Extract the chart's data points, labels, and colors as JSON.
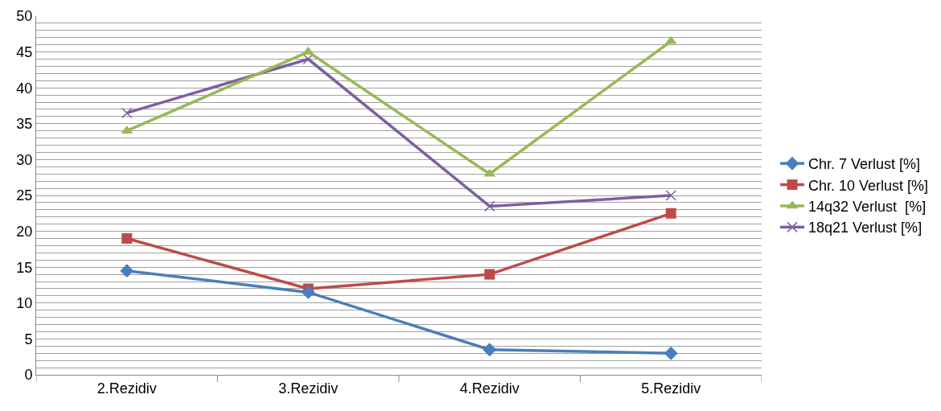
{
  "chart_data": {
    "type": "line",
    "categories": [
      "2.Rezidiv",
      "3.Rezidiv",
      "4.Rezidiv",
      "5.Rezidiv"
    ],
    "series": [
      {
        "name": "Chr. 7 Verlust [%]",
        "color": "#4a7ebb",
        "marker": "diamond",
        "values": [
          14.5,
          11.5,
          3.5,
          3
        ]
      },
      {
        "name": "Chr. 10 Verlust [%]",
        "color": "#be4b48",
        "marker": "square",
        "values": [
          19,
          12,
          14,
          22.5
        ]
      },
      {
        "name": "14q32 Verlust  [%]",
        "color": "#98b954",
        "marker": "triangle",
        "values": [
          34,
          45,
          28,
          46.5
        ]
      },
      {
        "name": "18q21 Verlust [%]",
        "color": "#7d5fa0",
        "marker": "cross",
        "values": [
          36.5,
          44,
          23.5,
          25
        ]
      }
    ],
    "ylim": [
      0,
      50
    ],
    "yticks": [
      0,
      {
        "value": 1,
        "label": null
      },
      {
        "value": 2,
        "label": null
      },
      {
        "value": 3,
        "label": null
      },
      {
        "value": 4,
        "label": null
      },
      5,
      {
        "value": 6,
        "label": null
      },
      {
        "value": 7,
        "label": null
      },
      {
        "value": 8,
        "label": null
      },
      {
        "value": 9,
        "label": null
      },
      10,
      {
        "value": 11,
        "label": null
      },
      {
        "value": 12,
        "label": null
      },
      {
        "value": 13,
        "label": null
      },
      {
        "value": 14,
        "label": null
      },
      15,
      {
        "value": 16,
        "label": null
      },
      {
        "value": 17,
        "label": null
      },
      {
        "value": 18,
        "label": null
      },
      {
        "value": 19,
        "label": null
      },
      20,
      {
        "value": 21,
        "label": null
      },
      {
        "value": 22,
        "label": null
      },
      {
        "value": 23,
        "label": null
      },
      {
        "value": 24,
        "label": null
      },
      25,
      {
        "value": 26,
        "label": null
      },
      {
        "value": 27,
        "label": null
      },
      {
        "value": 28,
        "label": null
      },
      {
        "value": 29,
        "label": null
      },
      30,
      {
        "value": 31,
        "label": null
      },
      {
        "value": 32,
        "label": null
      },
      {
        "value": 33,
        "label": null
      },
      {
        "value": 34,
        "label": null
      },
      35,
      {
        "value": 36,
        "label": null
      },
      {
        "value": 37,
        "label": null
      },
      {
        "value": 38,
        "label": null
      },
      {
        "value": 39,
        "label": null
      },
      40,
      {
        "value": 41,
        "label": null
      },
      {
        "value": 42,
        "label": null
      },
      {
        "value": 43,
        "label": null
      },
      {
        "value": 44,
        "label": null
      },
      45,
      {
        "value": 46,
        "label": null
      },
      {
        "value": 47,
        "label": null
      },
      {
        "value": 48,
        "label": null
      },
      {
        "value": 49,
        "label": null
      },
      50
    ],
    "grid": "y",
    "legend": "right",
    "line_style": "solid"
  }
}
